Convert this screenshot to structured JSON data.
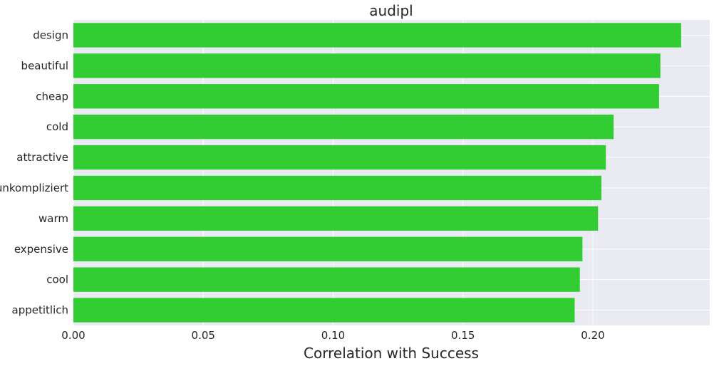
{
  "chart_data": {
    "type": "bar",
    "orientation": "horizontal",
    "title": "audipl",
    "xlabel": "Correlation with Success",
    "ylabel": "",
    "categories": [
      "design",
      "beautiful",
      "cheap",
      "cold",
      "attractive",
      "unkompliziert",
      "warm",
      "expensive",
      "cool",
      "appetitlich"
    ],
    "values": [
      0.234,
      0.226,
      0.2255,
      0.208,
      0.205,
      0.2033,
      0.202,
      0.196,
      0.195,
      0.193
    ],
    "xlim": [
      0,
      0.245
    ],
    "xticks": [
      0.0,
      0.05,
      0.1,
      0.15,
      0.2
    ],
    "xtick_labels": [
      "0.00",
      "0.05",
      "0.10",
      "0.15",
      "0.20"
    ],
    "grid": true,
    "legend": "none",
    "colors": {
      "bar": "#32cd32",
      "plot_background": "#eaeaf2",
      "grid": "#ffffff",
      "text": "#262626"
    }
  }
}
